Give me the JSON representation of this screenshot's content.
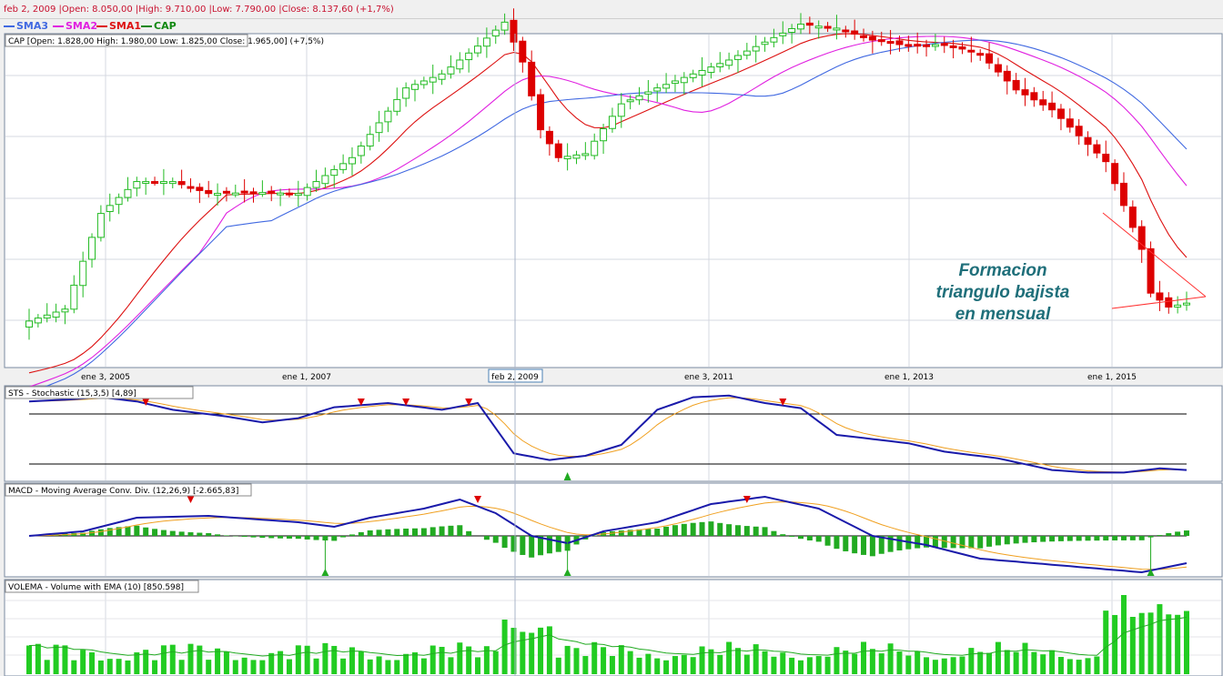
{
  "info_bar": "feb 2, 2009 |Open: 8.050,00 |High: 9.710,00 |Low: 7.790,00 |Close: 8.137,60 (+1,7%)",
  "legend": [
    {
      "name": "SMA3",
      "color": "#4169e1"
    },
    {
      "name": "SMA2",
      "color": "#e020e0"
    },
    {
      "name": "SMA1",
      "color": "#dd1111"
    },
    {
      "name": "CAP",
      "color": "#118811"
    }
  ],
  "panels": {
    "price_label": "CAP [Open: 1.828,00  High: 1.980,00  Low: 1.825,00  Close: 1.965,00] (+7,5%)",
    "sts_label": "STS - Stochastic (15,3,5) [4,89]",
    "macd_label": "MACD - Moving Average Conv. Div. (12,26,9) [-2.665,83]",
    "volema_label": "VOLEMA - Volume with EMA (10) [850.598]"
  },
  "x_axis": {
    "labels": [
      "ene 3, 2005",
      "ene 1, 2007",
      "ene 3, 2011",
      "ene 1, 2013",
      "ene 1, 2015"
    ],
    "cursor_label": "feb 2, 2009"
  },
  "annotation": [
    "Formacion",
    "triangulo bajista",
    "en mensual"
  ],
  "chart_data": {
    "type": "candlestick",
    "x_start": "2004-06",
    "x_interval": "month",
    "count": 130,
    "indicators": [
      "SMA1",
      "SMA2",
      "SMA3",
      "Stochastic (15,3,5)",
      "MACD (12,26,9)",
      "Volume with EMA (10)"
    ],
    "colors": {
      "up": "#22bb22",
      "down": "#dd0000",
      "sma1": "#dd1111",
      "sma2": "#e020e0",
      "sma3": "#4169e1",
      "sto_k": "#1a1aaa",
      "sto_d": "#f0a020",
      "macd": "#1a1aaa",
      "signal": "#f0a020",
      "hist": "#22aa22",
      "volume": "#22cc22",
      "marker_sell": "#dd0000",
      "marker_buy": "#22aa22"
    }
  }
}
